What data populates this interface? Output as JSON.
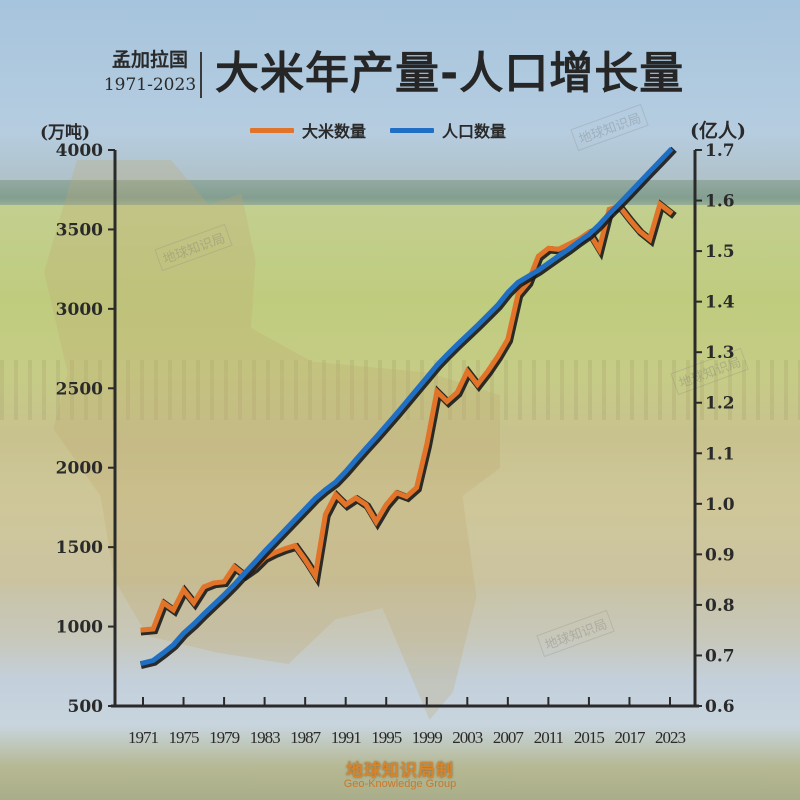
{
  "header": {
    "country": "孟加拉国",
    "years": "1971-2023",
    "title": "大米年产量-人口增长量"
  },
  "legend": [
    {
      "label": "大米数量",
      "color": "#e2742a"
    },
    {
      "label": "人口数量",
      "color": "#1f6fc4"
    }
  ],
  "axes": {
    "left_unit": "(万吨)",
    "right_unit": "(亿人)",
    "left_ticks": [
      "4000",
      "3500",
      "3000",
      "2500",
      "2000",
      "1500",
      "1000",
      "500"
    ],
    "right_ticks": [
      "1.7",
      "1.6",
      "1.5",
      "1.4",
      "1.3",
      "1.2",
      "1.1",
      "1.0",
      "0.9",
      "0.8",
      "0.7",
      "0.6"
    ],
    "x_ticks": [
      "1971",
      "1975",
      "1979",
      "1983",
      "1987",
      "1991",
      "1995",
      "1999",
      "2003",
      "2007",
      "2011",
      "2015",
      "2017",
      "2023"
    ]
  },
  "watermarks": [
    "地球知识局",
    "地球知识局",
    "地球知识局",
    "地球知识局"
  ],
  "credit": {
    "cn": "地球知识局制",
    "en": "Geo-Knowledge Group"
  },
  "colors": {
    "rice": "#e2742a",
    "population": "#1f6fc4",
    "axis": "#2a2a2a"
  },
  "chart_data": {
    "type": "line",
    "title": "孟加拉国 1971-2023 大米年产量-人口增长量",
    "xlabel": "",
    "ylabel": "大米数量 (万吨)",
    "ylabel_right": "人口数量 (亿人)",
    "ylim": [
      500,
      4000
    ],
    "ylim_right": [
      0.6,
      1.7
    ],
    "grid": false,
    "legend_position": "top",
    "x_tick_labels": [
      "1971",
      "1975",
      "1979",
      "1983",
      "1987",
      "1991",
      "1995",
      "1999",
      "2003",
      "2007",
      "2011",
      "2015",
      "2017",
      "2023"
    ],
    "x": [
      1971,
      1972,
      1973,
      1974,
      1975,
      1976,
      1977,
      1978,
      1979,
      1980,
      1981,
      1982,
      1983,
      1984,
      1985,
      1986,
      1987,
      1988,
      1989,
      1990,
      1991,
      1992,
      1993,
      1994,
      1995,
      1996,
      1997,
      1998,
      1999,
      2000,
      2001,
      2002,
      2003,
      2004,
      2005,
      2006,
      2007,
      2008,
      2009,
      2010,
      2011,
      2012,
      2013,
      2014,
      2015,
      2016,
      2017,
      2018,
      2019,
      2020,
      2021,
      2022,
      2023
    ],
    "series": [
      {
        "name": "大米数量",
        "axis": "left",
        "unit": "万吨",
        "color": "#e2742a",
        "values": [
          979,
          985,
          1150,
          1105,
          1231,
          1150,
          1250,
          1275,
          1282,
          1376,
          1325,
          1370,
          1433,
          1465,
          1490,
          1510,
          1420,
          1320,
          1705,
          1830,
          1767,
          1810,
          1767,
          1660,
          1767,
          1843,
          1818,
          1875,
          2146,
          2480,
          2417,
          2474,
          2606,
          2524,
          2606,
          2700,
          2808,
          3091,
          3167,
          3331,
          3381,
          3375,
          3407,
          3438,
          3482,
          3375,
          3627,
          3646,
          3564,
          3489,
          3438,
          3659,
          3609
        ]
      },
      {
        "name": "人口数量",
        "axis": "right",
        "unit": "亿人",
        "color": "#1f6fc4",
        "values": [
          0.685,
          0.69,
          0.705,
          0.721,
          0.744,
          0.762,
          0.782,
          0.801,
          0.82,
          0.84,
          0.862,
          0.884,
          0.906,
          0.927,
          0.948,
          0.969,
          0.99,
          1.011,
          1.028,
          1.043,
          1.064,
          1.087,
          1.11,
          1.132,
          1.155,
          1.178,
          1.202,
          1.226,
          1.25,
          1.274,
          1.295,
          1.315,
          1.334,
          1.353,
          1.373,
          1.393,
          1.418,
          1.438,
          1.45,
          1.462,
          1.476,
          1.49,
          1.504,
          1.519,
          1.533,
          1.552,
          1.574,
          1.594,
          1.615,
          1.636,
          1.657,
          1.678,
          1.699
        ]
      }
    ]
  }
}
